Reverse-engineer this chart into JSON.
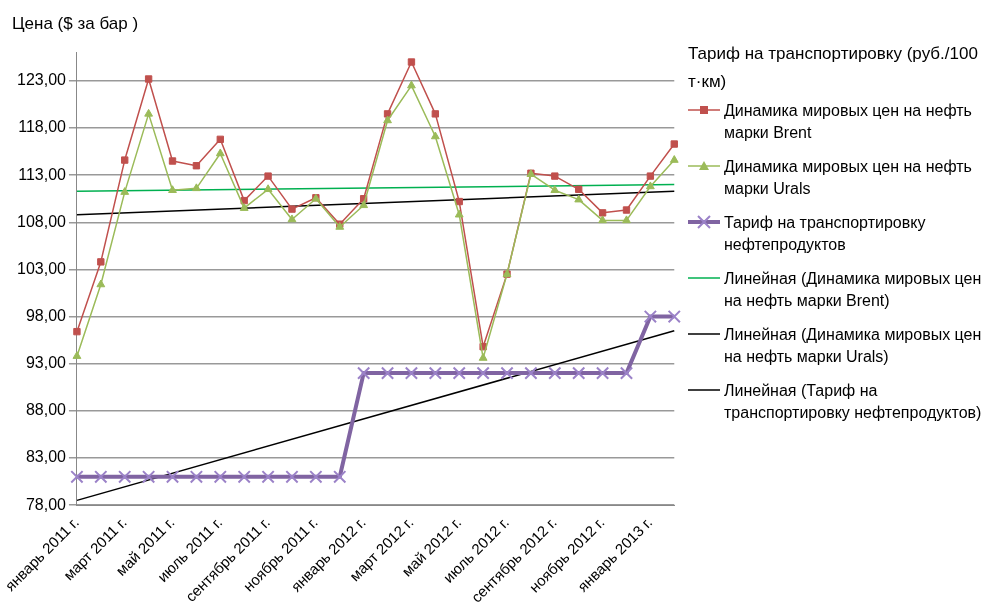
{
  "chart_data": {
    "type": "line",
    "ylabel": "Цена ($ за бар )",
    "legend_title": "Тариф на транспортировку (руб./100 т·км)",
    "categories": [
      "январь 2011 г.",
      null,
      "март 2011 г.",
      null,
      "май 2011 г.",
      null,
      "июль 2011 г.",
      null,
      "сентябрь 2011 г.",
      null,
      "ноябрь 2011 г.",
      null,
      "январь 2012 г.",
      null,
      "март 2012 г.",
      null,
      "май 2012 г.",
      null,
      "июль 2012 г.",
      null,
      "сентябрь 2012 г.",
      null,
      "ноябрь 2012 г.",
      null,
      "январь 2013 г.",
      null
    ],
    "series": [
      {
        "name": "Динамика мировых цен на нефть марки Brent",
        "color": "#c0504d",
        "marker": "square",
        "values": [
          96.4,
          103.8,
          114.6,
          123.2,
          114.5,
          114.0,
          116.8,
          110.3,
          112.9,
          109.4,
          110.6,
          107.8,
          110.5,
          119.5,
          125.0,
          119.5,
          110.2,
          94.8,
          102.5,
          113.2,
          112.9,
          111.5,
          109.0,
          109.3,
          112.9,
          116.3
        ]
      },
      {
        "name": "Динамика мировых цен на нефть марки Urals",
        "color": "#9bbb59",
        "marker": "triangle",
        "values": [
          93.8,
          101.4,
          111.2,
          119.5,
          111.4,
          111.6,
          115.3,
          109.5,
          111.5,
          108.3,
          110.5,
          107.5,
          109.8,
          118.8,
          122.5,
          117.1,
          108.8,
          93.6,
          102.5,
          113.1,
          111.4,
          110.4,
          108.2,
          108.2,
          111.8,
          114.6
        ]
      },
      {
        "name": "Тариф на транспортировку нефтепродуктов",
        "color": "#8064a2",
        "marker": "cross",
        "values": [
          81,
          81,
          81,
          81,
          81,
          81,
          81,
          81,
          81,
          81,
          81,
          81,
          92,
          92,
          92,
          92,
          92,
          92,
          92,
          92,
          92,
          92,
          92,
          92,
          98,
          98
        ]
      },
      {
        "name": "Линейная (Динамика мировых цен на нефть марки Brent)",
        "color": "#00b050",
        "marker": "none",
        "values": [
          111.3,
          null,
          null,
          null,
          null,
          null,
          null,
          null,
          null,
          null,
          null,
          null,
          null,
          null,
          null,
          null,
          null,
          null,
          null,
          null,
          null,
          null,
          null,
          null,
          null,
          112.0
        ]
      },
      {
        "name": "Линейная (Динамика мировых цен на нефть марки Urals)",
        "color": "#000000",
        "marker": "none",
        "values": [
          108.8,
          null,
          null,
          null,
          null,
          null,
          null,
          null,
          null,
          null,
          null,
          null,
          null,
          null,
          null,
          null,
          null,
          null,
          null,
          null,
          null,
          null,
          null,
          null,
          null,
          111.3
        ]
      },
      {
        "name": "Линейная (Тариф на транспортировку нефтепродуктов)",
        "color": "#000000",
        "marker": "none",
        "values": [
          78.5,
          null,
          null,
          null,
          null,
          null,
          null,
          null,
          null,
          null,
          null,
          null,
          null,
          null,
          null,
          null,
          null,
          null,
          null,
          null,
          null,
          null,
          null,
          null,
          null,
          96.5
        ]
      }
    ],
    "ylim": [
      78,
      126
    ],
    "yticks": [
      {
        "value": 78,
        "label": "78,00"
      },
      {
        "value": 83,
        "label": "83,00"
      },
      {
        "value": 88,
        "label": "88,00"
      },
      {
        "value": 93,
        "label": "93,00"
      },
      {
        "value": 98,
        "label": "98,00"
      },
      {
        "value": 103,
        "label": "103,00"
      },
      {
        "value": 108,
        "label": "108,00"
      },
      {
        "value": 113,
        "label": "113,00"
      },
      {
        "value": 118,
        "label": "118,00"
      },
      {
        "value": 123,
        "label": "123,00"
      }
    ],
    "grid": "y",
    "legend": "right",
    "line_style": "solid"
  }
}
